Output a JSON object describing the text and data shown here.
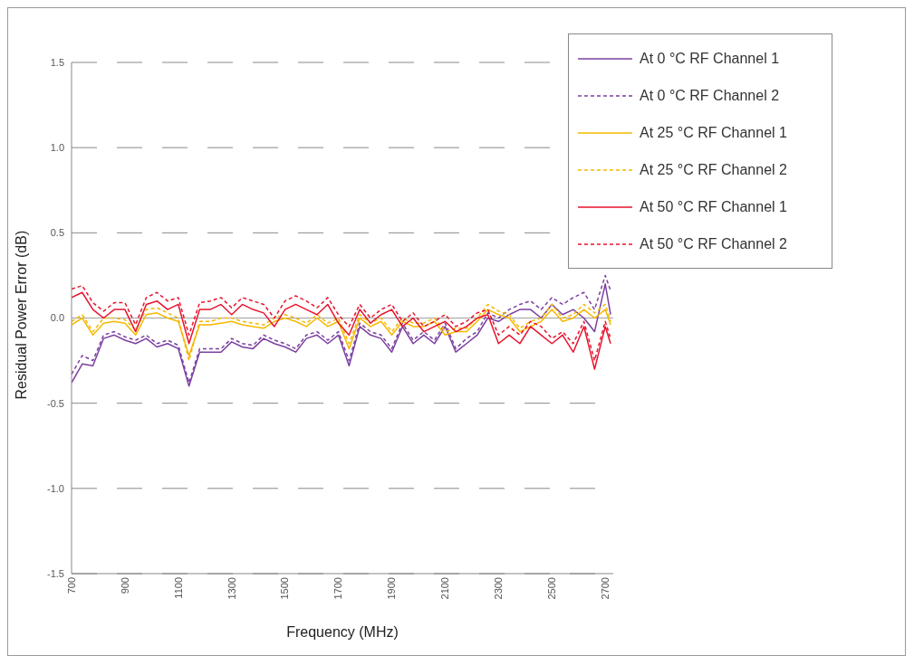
{
  "chart_data": {
    "type": "line",
    "xlabel": "Frequency (MHz)",
    "ylabel": "Residual Power Error (dB)",
    "x": [
      700,
      740,
      780,
      820,
      860,
      900,
      940,
      980,
      1020,
      1060,
      1100,
      1140,
      1180,
      1220,
      1260,
      1300,
      1340,
      1380,
      1420,
      1460,
      1500,
      1540,
      1580,
      1620,
      1660,
      1700,
      1740,
      1780,
      1820,
      1860,
      1900,
      1940,
      1980,
      2020,
      2060,
      2100,
      2140,
      2180,
      2220,
      2260,
      2300,
      2340,
      2380,
      2420,
      2460,
      2500,
      2540,
      2580,
      2620,
      2660,
      2700,
      2720
    ],
    "series": [
      {
        "name": "At 0 °C RF Channel 1",
        "color": "#7b3fa0",
        "line_style": "solid",
        "values": [
          -0.38,
          -0.27,
          -0.28,
          -0.12,
          -0.1,
          -0.13,
          -0.15,
          -0.12,
          -0.17,
          -0.15,
          -0.18,
          -0.4,
          -0.2,
          -0.2,
          -0.2,
          -0.14,
          -0.17,
          -0.18,
          -0.12,
          -0.15,
          -0.17,
          -0.2,
          -0.12,
          -0.1,
          -0.15,
          -0.1,
          -0.28,
          -0.05,
          -0.1,
          -0.12,
          -0.2,
          -0.05,
          -0.15,
          -0.1,
          -0.15,
          -0.05,
          -0.2,
          -0.15,
          -0.1,
          0.0,
          -0.02,
          0.02,
          0.05,
          0.05,
          0.0,
          0.08,
          0.02,
          0.05,
          0.0,
          -0.08,
          0.2,
          0.02
        ]
      },
      {
        "name": "At 0 °C RF Channel 2",
        "color": "#7b3fa0",
        "line_style": "dashed",
        "values": [
          -0.33,
          -0.22,
          -0.25,
          -0.1,
          -0.08,
          -0.11,
          -0.13,
          -0.1,
          -0.15,
          -0.13,
          -0.16,
          -0.38,
          -0.18,
          -0.18,
          -0.18,
          -0.12,
          -0.15,
          -0.16,
          -0.1,
          -0.13,
          -0.15,
          -0.18,
          -0.1,
          -0.08,
          -0.13,
          -0.08,
          -0.25,
          -0.03,
          -0.08,
          -0.1,
          -0.18,
          -0.03,
          -0.13,
          -0.08,
          -0.13,
          -0.03,
          -0.18,
          -0.12,
          -0.08,
          0.03,
          0.0,
          0.05,
          0.08,
          0.1,
          0.05,
          0.12,
          0.08,
          0.12,
          0.15,
          0.05,
          0.25,
          0.16
        ]
      },
      {
        "name": "At 25 °C RF Channel 1",
        "color": "#f5b800",
        "line_style": "solid",
        "values": [
          -0.04,
          0.0,
          -0.1,
          -0.03,
          -0.02,
          -0.03,
          -0.1,
          0.02,
          0.03,
          0.0,
          -0.02,
          -0.22,
          -0.04,
          -0.04,
          -0.03,
          -0.02,
          -0.04,
          -0.05,
          -0.06,
          -0.02,
          0.0,
          -0.02,
          -0.05,
          0.0,
          -0.05,
          -0.02,
          -0.18,
          0.0,
          -0.05,
          -0.02,
          -0.1,
          -0.02,
          -0.05,
          -0.05,
          -0.02,
          -0.1,
          -0.08,
          -0.08,
          -0.02,
          0.05,
          0.02,
          0.0,
          -0.08,
          -0.05,
          -0.02,
          0.05,
          -0.02,
          0.0,
          0.05,
          0.0,
          0.05,
          -0.04
        ]
      },
      {
        "name": "At 25 °C RF Channel 2",
        "color": "#f5b800",
        "line_style": "dashed",
        "values": [
          -0.02,
          0.02,
          -0.08,
          0.0,
          0.0,
          -0.01,
          -0.07,
          0.05,
          0.06,
          0.03,
          0.0,
          -0.25,
          -0.02,
          -0.02,
          0.0,
          0.0,
          -0.02,
          -0.03,
          -0.04,
          0.0,
          0.02,
          0.0,
          -0.03,
          0.02,
          -0.03,
          0.0,
          -0.15,
          0.02,
          -0.03,
          0.0,
          -0.08,
          0.0,
          -0.03,
          -0.03,
          0.0,
          -0.08,
          -0.06,
          -0.06,
          0.0,
          0.08,
          0.04,
          0.02,
          -0.06,
          -0.02,
          0.0,
          0.08,
          0.0,
          0.02,
          0.08,
          0.03,
          0.08,
          -0.02
        ]
      },
      {
        "name": "At 50 °C RF Channel 1",
        "color": "#e8132e",
        "line_style": "solid",
        "values": [
          0.12,
          0.15,
          0.05,
          0.0,
          0.05,
          0.05,
          -0.08,
          0.08,
          0.1,
          0.05,
          0.08,
          -0.15,
          0.05,
          0.05,
          0.08,
          0.02,
          0.08,
          0.05,
          0.03,
          -0.05,
          0.05,
          0.08,
          0.05,
          0.02,
          0.08,
          -0.03,
          -0.1,
          0.05,
          -0.03,
          0.02,
          0.05,
          -0.05,
          0.0,
          -0.08,
          -0.05,
          -0.02,
          -0.08,
          -0.05,
          0.0,
          0.02,
          -0.15,
          -0.1,
          -0.15,
          -0.05,
          -0.1,
          -0.15,
          -0.1,
          -0.2,
          -0.05,
          -0.3,
          -0.05,
          -0.15
        ]
      },
      {
        "name": "At 50 °C RF Channel 2",
        "color": "#e8132e",
        "line_style": "dashed",
        "values": [
          0.17,
          0.19,
          0.09,
          0.04,
          0.09,
          0.09,
          -0.04,
          0.12,
          0.15,
          0.1,
          0.12,
          -0.1,
          0.09,
          0.1,
          0.12,
          0.06,
          0.12,
          0.1,
          0.08,
          0.0,
          0.1,
          0.13,
          0.1,
          0.06,
          0.12,
          0.02,
          -0.05,
          0.08,
          0.0,
          0.05,
          0.08,
          -0.02,
          0.03,
          -0.05,
          -0.02,
          0.02,
          -0.05,
          -0.02,
          0.03,
          0.05,
          -0.1,
          -0.05,
          -0.1,
          -0.02,
          -0.05,
          -0.12,
          -0.08,
          -0.15,
          -0.02,
          -0.25,
          -0.02,
          -0.12
        ]
      }
    ],
    "xlim": [
      700,
      2730
    ],
    "xticks": [
      700,
      900,
      1100,
      1300,
      1500,
      1700,
      1900,
      2100,
      2300,
      2500,
      2700
    ],
    "ylim": [
      -1.5,
      1.5
    ],
    "yticks": [
      {
        "value": -1.5,
        "label": "-1.5"
      },
      {
        "value": -1.0,
        "label": "-1.0"
      },
      {
        "value": -0.5,
        "label": "-0.5"
      },
      {
        "value": 0,
        "label": "0.0"
      },
      {
        "value": 0.5,
        "label": "0.5"
      },
      {
        "value": 1.0,
        "label": "1.0"
      },
      {
        "value": 1.5,
        "label": "1.5"
      }
    ],
    "ref_lines": [
      {
        "axis": "y",
        "value": 0,
        "color": "#a0a0a0",
        "line_style": "solid"
      }
    ],
    "grid": "y",
    "legend": "top right",
    "marker": "none"
  }
}
